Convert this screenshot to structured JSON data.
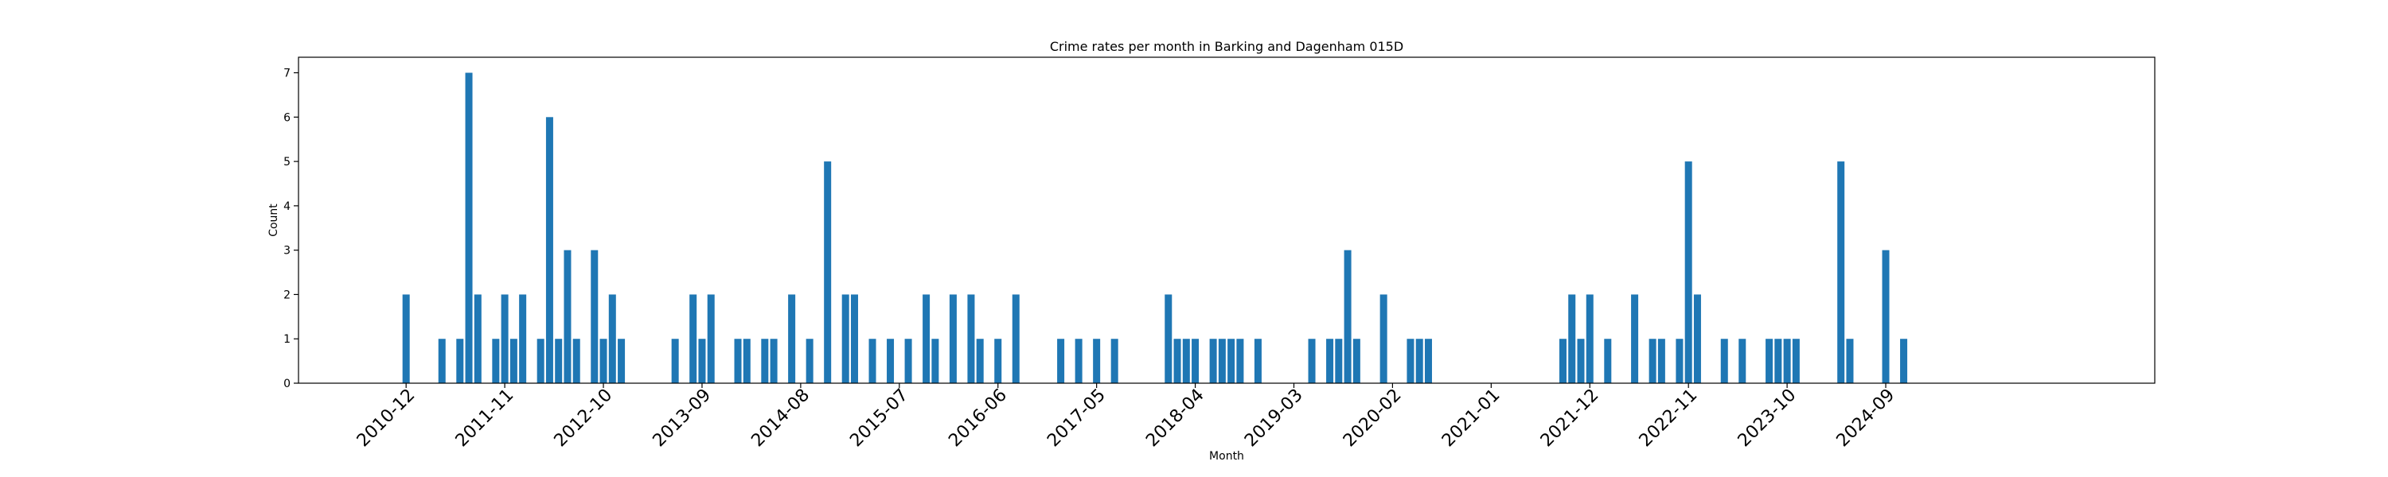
{
  "chart_data": {
    "type": "bar",
    "title": "Crime rates per month in Barking and Dagenham 015D",
    "xlabel": "Month",
    "ylabel": "Count",
    "ylim": [
      0,
      7.35
    ],
    "yticks": [
      0,
      1,
      2,
      3,
      4,
      5,
      6,
      7
    ],
    "xlim": [
      "2009-12",
      "2027-03"
    ],
    "xtick_labels": [
      "2010-12",
      "2011-11",
      "2012-10",
      "2013-09",
      "2014-08",
      "2015-07",
      "2016-06",
      "2017-05",
      "2018-04",
      "2019-03",
      "2020-02",
      "2021-01",
      "2021-12",
      "2022-11",
      "2023-10",
      "2024-09"
    ],
    "bar_color": "#1f77b4",
    "grid": false,
    "legend": "none",
    "categories": [
      "2010-12",
      "2011-04",
      "2011-06",
      "2011-07",
      "2011-08",
      "2011-10",
      "2011-11",
      "2011-12",
      "2012-01",
      "2012-03",
      "2012-04",
      "2012-05",
      "2012-06",
      "2012-07",
      "2012-09",
      "2012-10",
      "2012-11",
      "2012-12",
      "2013-06",
      "2013-08",
      "2013-09",
      "2013-10",
      "2014-01",
      "2014-02",
      "2014-04",
      "2014-05",
      "2014-07",
      "2014-09",
      "2014-11",
      "2015-01",
      "2015-02",
      "2015-04",
      "2015-06",
      "2015-08",
      "2015-10",
      "2015-11",
      "2016-01",
      "2016-03",
      "2016-04",
      "2016-06",
      "2016-08",
      "2017-01",
      "2017-03",
      "2017-05",
      "2017-07",
      "2018-01",
      "2018-02",
      "2018-03",
      "2018-04",
      "2018-06",
      "2018-07",
      "2018-08",
      "2018-09",
      "2018-11",
      "2019-05",
      "2019-07",
      "2019-08",
      "2019-09",
      "2019-10",
      "2020-01",
      "2020-04",
      "2020-05",
      "2020-06",
      "2021-09",
      "2021-10",
      "2021-11",
      "2021-12",
      "2022-02",
      "2022-05",
      "2022-07",
      "2022-08",
      "2022-10",
      "2022-11",
      "2022-12",
      "2023-03",
      "2023-05",
      "2023-08",
      "2023-09",
      "2023-10",
      "2023-11",
      "2024-04",
      "2024-05",
      "2024-09",
      "2024-11"
    ],
    "values": [
      2,
      1,
      1,
      7,
      2,
      1,
      2,
      1,
      2,
      1,
      6,
      1,
      3,
      1,
      3,
      1,
      2,
      1,
      1,
      2,
      1,
      2,
      1,
      1,
      1,
      1,
      2,
      1,
      5,
      2,
      2,
      1,
      1,
      1,
      2,
      1,
      2,
      2,
      1,
      1,
      2,
      1,
      1,
      1,
      1,
      2,
      1,
      1,
      1,
      1,
      1,
      1,
      1,
      1,
      1,
      1,
      1,
      3,
      1,
      2,
      1,
      1,
      1,
      1,
      2,
      1,
      2,
      1,
      2,
      1,
      1,
      1,
      5,
      2,
      1,
      1,
      1,
      1,
      1,
      1,
      5,
      1,
      3,
      1
    ]
  }
}
